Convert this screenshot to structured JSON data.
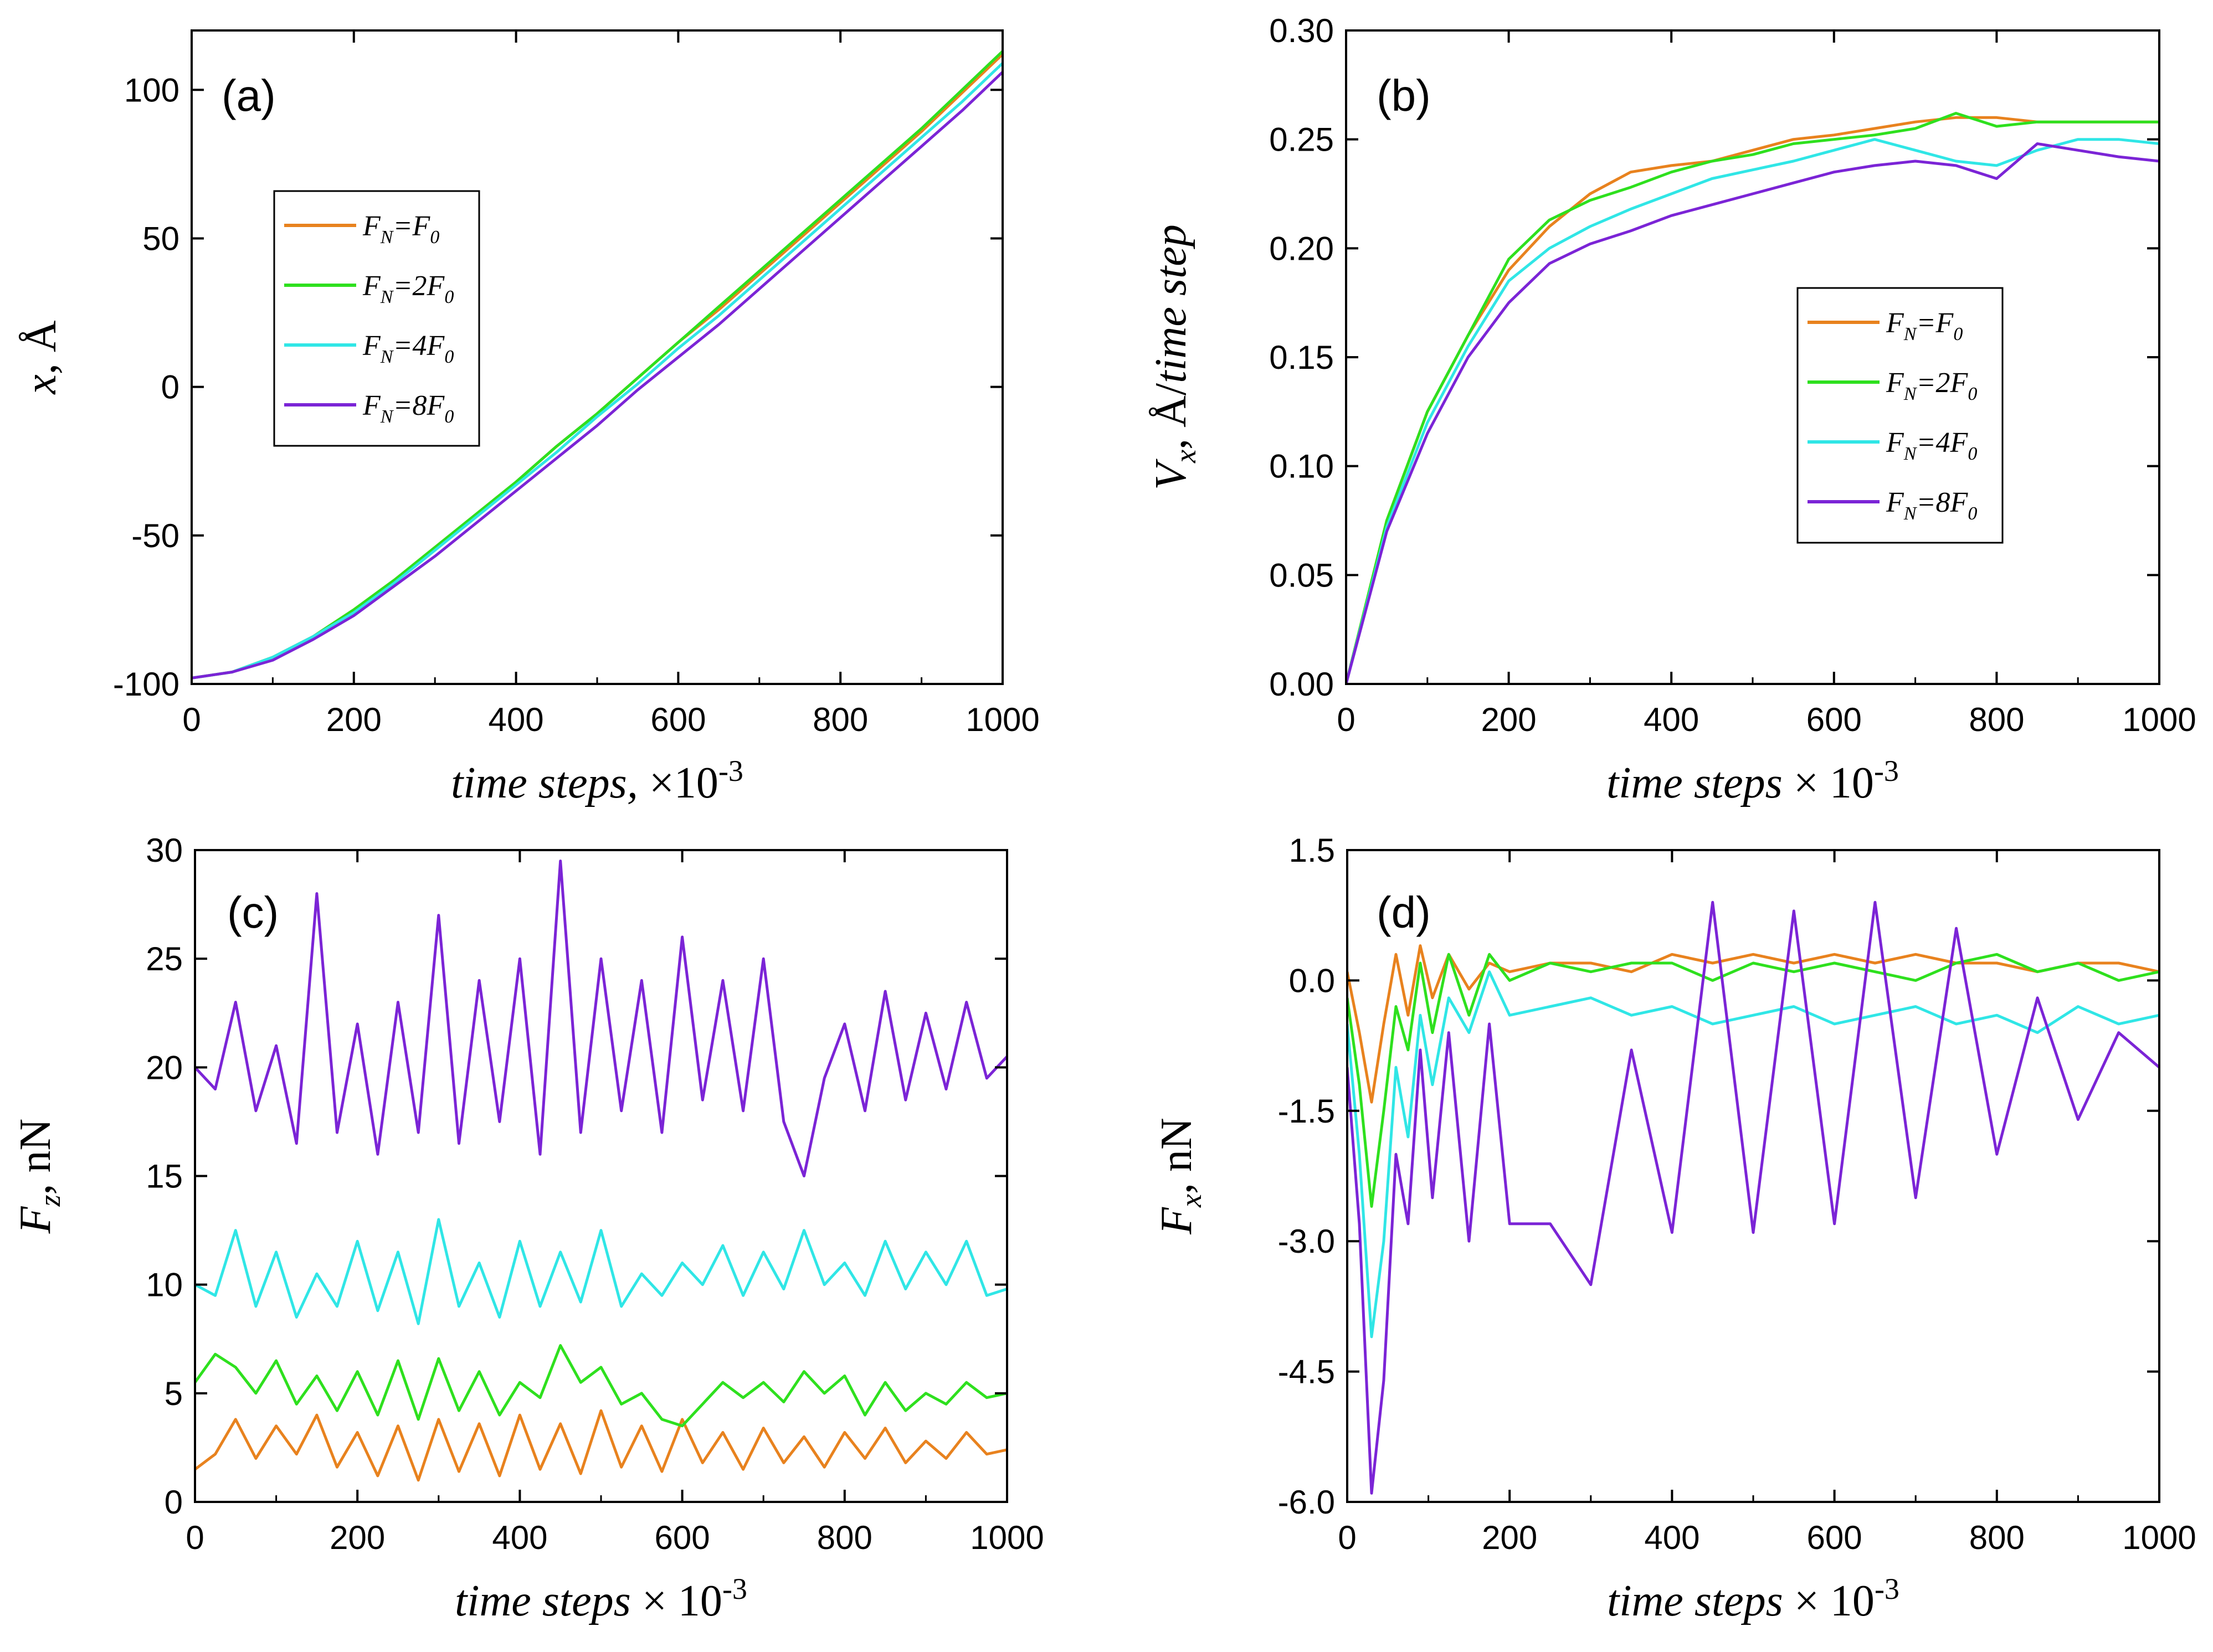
{
  "chart_data": [
    {
      "type": "line",
      "panel_label": "(a)",
      "xlabel": "time steps, ×10",
      "xlabel_exp": "-3",
      "ylabel": "x, Å",
      "xlim": [
        0,
        1000
      ],
      "ylim": [
        -100,
        120
      ],
      "xticks": [
        "0",
        "200",
        "400",
        "600",
        "800",
        "1000"
      ],
      "xtick_values": [
        0,
        200,
        400,
        600,
        800,
        1000
      ],
      "yticks": [
        "-100",
        "-50",
        "0",
        "50",
        "100"
      ],
      "ytick_values": [
        -100,
        -50,
        0,
        50,
        100
      ],
      "legend_position": "left",
      "legend": [
        "FN=F0",
        "FN=2F0",
        "FN=4F0",
        "FN=8F0"
      ],
      "x": [
        0,
        50,
        100,
        150,
        200,
        250,
        300,
        350,
        400,
        450,
        500,
        550,
        600,
        650,
        700,
        750,
        800,
        850,
        900,
        950,
        1000
      ],
      "series": [
        {
          "name": "FN=F0",
          "color": "#e8821e",
          "values": [
            -98,
            -96,
            -91,
            -84,
            -75,
            -65,
            -54,
            -43,
            -32,
            -20,
            -9,
            3,
            15,
            26,
            38,
            50,
            62,
            74,
            86,
            99,
            112
          ]
        },
        {
          "name": "FN=2F0",
          "color": "#2ee01e",
          "values": [
            -98,
            -96,
            -91,
            -84,
            -75,
            -65,
            -54,
            -43,
            -32,
            -20,
            -9,
            3,
            15,
            27,
            39,
            51,
            63,
            75,
            87,
            100,
            113
          ]
        },
        {
          "name": "FN=4F0",
          "color": "#30e6e6",
          "values": [
            -98,
            -96,
            -91,
            -84,
            -76,
            -66,
            -55,
            -44,
            -33,
            -22,
            -10,
            1,
            13,
            24,
            36,
            48,
            60,
            72,
            84,
            96,
            109
          ]
        },
        {
          "name": "FN=8F0",
          "color": "#7b24d6",
          "values": [
            -98,
            -96,
            -92,
            -85,
            -77,
            -67,
            -57,
            -46,
            -35,
            -24,
            -13,
            -1,
            10,
            21,
            33,
            45,
            57,
            69,
            81,
            93,
            106
          ]
        }
      ]
    },
    {
      "type": "line",
      "panel_label": "(b)",
      "xlabel": "time steps × 10",
      "xlabel_exp": "-3",
      "ylabel": "Vx, Å/time step",
      "xlim": [
        0,
        1000
      ],
      "ylim": [
        0,
        0.3
      ],
      "xticks": [
        "0",
        "200",
        "400",
        "600",
        "800",
        "1000"
      ],
      "xtick_values": [
        0,
        200,
        400,
        600,
        800,
        1000
      ],
      "yticks": [
        "0.00",
        "0.05",
        "0.10",
        "0.15",
        "0.20",
        "0.25",
        "0.30"
      ],
      "ytick_values": [
        0,
        0.05,
        0.1,
        0.15,
        0.2,
        0.25,
        0.3
      ],
      "legend_position": "center-right",
      "legend": [
        "FN=F0",
        "FN=2F0",
        "FN=4F0",
        "FN=8F0"
      ],
      "x": [
        0,
        50,
        100,
        150,
        200,
        250,
        300,
        350,
        400,
        450,
        500,
        550,
        600,
        650,
        700,
        750,
        800,
        850,
        900,
        950,
        1000
      ],
      "series": [
        {
          "name": "FN=F0",
          "color": "#e8821e",
          "values": [
            0,
            0.075,
            0.125,
            0.16,
            0.19,
            0.21,
            0.225,
            0.235,
            0.238,
            0.24,
            0.245,
            0.25,
            0.252,
            0.255,
            0.258,
            0.26,
            0.26,
            0.258,
            0.258,
            0.258,
            0.258
          ]
        },
        {
          "name": "FN=2F0",
          "color": "#2ee01e",
          "values": [
            0,
            0.075,
            0.125,
            0.16,
            0.195,
            0.213,
            0.222,
            0.228,
            0.235,
            0.24,
            0.243,
            0.248,
            0.25,
            0.252,
            0.255,
            0.262,
            0.256,
            0.258,
            0.258,
            0.258,
            0.258
          ]
        },
        {
          "name": "FN=4F0",
          "color": "#30e6e6",
          "values": [
            0,
            0.072,
            0.12,
            0.155,
            0.185,
            0.2,
            0.21,
            0.218,
            0.225,
            0.232,
            0.236,
            0.24,
            0.245,
            0.25,
            0.245,
            0.24,
            0.238,
            0.245,
            0.25,
            0.25,
            0.248
          ]
        },
        {
          "name": "FN=8F0",
          "color": "#7b24d6",
          "values": [
            0,
            0.07,
            0.115,
            0.15,
            0.175,
            0.193,
            0.202,
            0.208,
            0.215,
            0.22,
            0.225,
            0.23,
            0.235,
            0.238,
            0.24,
            0.238,
            0.232,
            0.248,
            0.245,
            0.242,
            0.24
          ]
        }
      ]
    },
    {
      "type": "line",
      "panel_label": "(c)",
      "xlabel": "time steps × 10",
      "xlabel_exp": "-3",
      "ylabel": "Fz, nN",
      "xlim": [
        0,
        1000
      ],
      "ylim": [
        0,
        30
      ],
      "xticks": [
        "0",
        "200",
        "400",
        "600",
        "800",
        "1000"
      ],
      "xtick_values": [
        0,
        200,
        400,
        600,
        800,
        1000
      ],
      "yticks": [
        "0",
        "5",
        "10",
        "15",
        "20",
        "25",
        "30"
      ],
      "ytick_values": [
        0,
        5,
        10,
        15,
        20,
        25,
        30
      ],
      "x": [
        0,
        25,
        50,
        75,
        100,
        125,
        150,
        175,
        200,
        225,
        250,
        275,
        300,
        325,
        350,
        375,
        400,
        425,
        450,
        475,
        500,
        525,
        550,
        575,
        600,
        625,
        650,
        675,
        700,
        725,
        750,
        775,
        800,
        825,
        850,
        875,
        900,
        925,
        950,
        975,
        1000
      ],
      "series": [
        {
          "name": "FN=F0",
          "color": "#e8821e",
          "values": [
            1.5,
            2.2,
            3.8,
            2.0,
            3.5,
            2.2,
            4.0,
            1.6,
            3.2,
            1.2,
            3.5,
            1.0,
            3.8,
            1.4,
            3.6,
            1.2,
            4.0,
            1.5,
            3.6,
            1.3,
            4.2,
            1.6,
            3.5,
            1.4,
            3.8,
            1.8,
            3.2,
            1.5,
            3.4,
            1.8,
            3.0,
            1.6,
            3.2,
            2.0,
            3.4,
            1.8,
            2.8,
            2.0,
            3.2,
            2.2,
            2.4
          ]
        },
        {
          "name": "FN=2F0",
          "color": "#2ee01e",
          "values": [
            5.5,
            6.8,
            6.2,
            5.0,
            6.5,
            4.5,
            5.8,
            4.2,
            6.0,
            4.0,
            6.5,
            3.8,
            6.6,
            4.2,
            6.0,
            4.0,
            5.5,
            4.8,
            7.2,
            5.5,
            6.2,
            4.5,
            5.0,
            3.8,
            3.5,
            4.5,
            5.5,
            4.8,
            5.5,
            4.6,
            6.0,
            5.0,
            5.8,
            4.0,
            5.5,
            4.2,
            5.0,
            4.5,
            5.5,
            4.8,
            5.0
          ]
        },
        {
          "name": "FN=4F0",
          "color": "#30e6e6",
          "values": [
            10.0,
            9.5,
            12.5,
            9.0,
            11.5,
            8.5,
            10.5,
            9.0,
            12.0,
            8.8,
            11.5,
            8.2,
            13.0,
            9.0,
            11.0,
            8.5,
            12.0,
            9.0,
            11.5,
            9.2,
            12.5,
            9.0,
            10.5,
            9.5,
            11.0,
            10.0,
            11.8,
            9.5,
            11.5,
            9.8,
            12.5,
            10.0,
            11.0,
            9.5,
            12.0,
            9.8,
            11.5,
            10.0,
            12.0,
            9.5,
            9.8
          ]
        },
        {
          "name": "FN=8F0",
          "color": "#7b24d6",
          "values": [
            20.0,
            19.0,
            23.0,
            18.0,
            21.0,
            16.5,
            28.0,
            17.0,
            22.0,
            16.0,
            23.0,
            17.0,
            27.0,
            16.5,
            24.0,
            17.5,
            25.0,
            16.0,
            29.5,
            17.0,
            25.0,
            18.0,
            24.0,
            17.0,
            26.0,
            18.5,
            24.0,
            18.0,
            25.0,
            17.5,
            15.0,
            19.5,
            22.0,
            18.0,
            23.5,
            18.5,
            22.5,
            19.0,
            23.0,
            19.5,
            20.5
          ]
        }
      ]
    },
    {
      "type": "line",
      "panel_label": "(d)",
      "xlabel": "time steps × 10",
      "xlabel_exp": "-3",
      "ylabel": "Fx, nN",
      "xlim": [
        0,
        1000
      ],
      "ylim": [
        -6.0,
        1.5
      ],
      "xticks": [
        "0",
        "200",
        "400",
        "600",
        "800",
        "1000"
      ],
      "xtick_values": [
        0,
        200,
        400,
        600,
        800,
        1000
      ],
      "yticks": [
        "-6.0",
        "-4.5",
        "-3.0",
        "-1.5",
        "0.0",
        "1.5"
      ],
      "ytick_values": [
        -6.0,
        -4.5,
        -3.0,
        -1.5,
        0.0,
        1.5
      ],
      "x": [
        0,
        15,
        30,
        45,
        60,
        75,
        90,
        105,
        125,
        150,
        175,
        200,
        250,
        300,
        350,
        400,
        450,
        500,
        550,
        600,
        650,
        700,
        750,
        800,
        850,
        900,
        950,
        1000
      ],
      "series": [
        {
          "name": "FN=F0",
          "color": "#e8821e",
          "values": [
            0.1,
            -0.6,
            -1.4,
            -0.5,
            0.3,
            -0.4,
            0.4,
            -0.2,
            0.3,
            -0.1,
            0.2,
            0.1,
            0.2,
            0.2,
            0.1,
            0.3,
            0.2,
            0.3,
            0.2,
            0.3,
            0.2,
            0.3,
            0.2,
            0.2,
            0.1,
            0.2,
            0.2,
            0.1
          ]
        },
        {
          "name": "FN=2F0",
          "color": "#2ee01e",
          "values": [
            -0.2,
            -1.2,
            -2.6,
            -1.5,
            -0.3,
            -0.8,
            0.2,
            -0.6,
            0.3,
            -0.4,
            0.3,
            0.0,
            0.2,
            0.1,
            0.2,
            0.2,
            0.0,
            0.2,
            0.1,
            0.2,
            0.1,
            0.0,
            0.2,
            0.3,
            0.1,
            0.2,
            0.0,
            0.1
          ]
        },
        {
          "name": "FN=4F0",
          "color": "#30e6e6",
          "values": [
            -0.5,
            -2.0,
            -4.1,
            -3.0,
            -1.0,
            -1.8,
            -0.4,
            -1.2,
            -0.2,
            -0.6,
            0.1,
            -0.4,
            -0.3,
            -0.2,
            -0.4,
            -0.3,
            -0.5,
            -0.4,
            -0.3,
            -0.5,
            -0.4,
            -0.3,
            -0.5,
            -0.4,
            -0.6,
            -0.3,
            -0.5,
            -0.4
          ]
        },
        {
          "name": "FN=8F0",
          "color": "#7b24d6",
          "values": [
            -1.0,
            -2.8,
            -5.9,
            -4.6,
            -2.0,
            -2.8,
            -0.8,
            -2.5,
            -0.6,
            -3.0,
            -0.5,
            -2.8,
            -2.8,
            -3.5,
            -0.8,
            -2.9,
            0.9,
            -2.9,
            0.8,
            -2.8,
            0.9,
            -2.5,
            0.6,
            -2.0,
            -0.2,
            -1.6,
            -0.6,
            -1.0
          ]
        }
      ]
    }
  ]
}
